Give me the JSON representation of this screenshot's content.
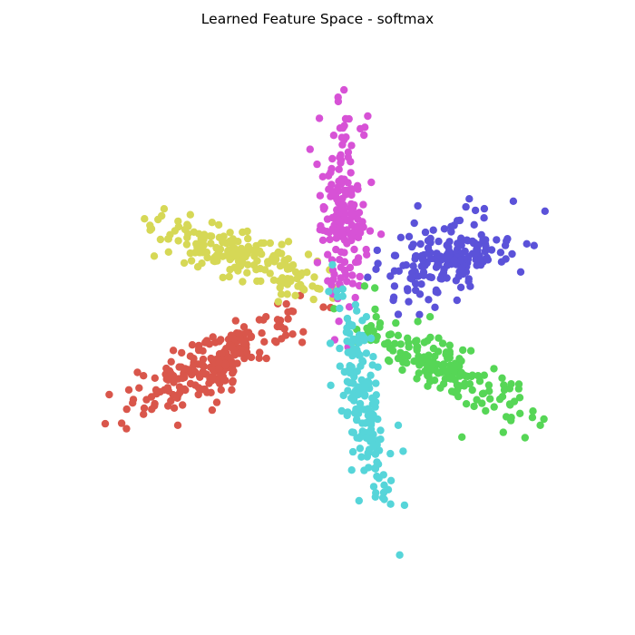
{
  "chart_data": {
    "type": "scatter",
    "title": "Learned Feature Space - softmax",
    "xlabel": "",
    "ylabel": "",
    "axes_visible": false,
    "grid": false,
    "legend": "none",
    "xlim": [
      -10,
      10
    ],
    "ylim": [
      -10,
      10
    ],
    "marker_radius": 4.2,
    "random_seed": 7,
    "series": [
      {
        "color": "#d9564b",
        "center": [
          -4.3,
          -1.6
        ],
        "spread": [
          1.8,
          0.52
        ],
        "angle_deg": 28,
        "n": 210,
        "points": [
          [
            -8.8,
            -3.0
          ],
          [
            -8.0,
            -2.8
          ],
          [
            -7.4,
            -2.2
          ],
          [
            -6.0,
            -4.3
          ],
          [
            -5.7,
            -1.9
          ],
          [
            -2.4,
            0.3
          ],
          [
            -1.5,
            0.5
          ],
          [
            -1.0,
            1.2
          ],
          [
            -3.5,
            -0.4
          ],
          [
            -4.6,
            -2.3
          ],
          [
            -3.8,
            -2.8
          ]
        ]
      },
      {
        "color": "#d6d856",
        "center": [
          -3.5,
          2.9
        ],
        "spread": [
          1.6,
          0.55
        ],
        "angle_deg": -18,
        "n": 180,
        "points": [
          [
            -6.4,
            3.6
          ],
          [
            -5.7,
            4.0
          ],
          [
            -4.6,
            4.3
          ],
          [
            -1.4,
            1.9
          ],
          [
            -1.2,
            1.2
          ],
          [
            -0.9,
            1.5
          ],
          [
            -0.5,
            1.6
          ],
          [
            -2.8,
            2.3
          ],
          [
            -3.9,
            2.0
          ]
        ]
      },
      {
        "color": "#d752d6",
        "center": [
          0.75,
          4.6
        ],
        "spread": [
          1.8,
          0.45
        ],
        "angle_deg": 90,
        "n": 170,
        "points": [
          [
            0.8,
            8.4
          ],
          [
            1.6,
            8.0
          ],
          [
            0.7,
            7.9
          ],
          [
            -0.6,
            7.4
          ],
          [
            1.9,
            6.0
          ],
          [
            0.6,
            1.7
          ],
          [
            0.9,
            1.8
          ],
          [
            -0.3,
            2.6
          ],
          [
            2.3,
            3.8
          ]
        ]
      },
      {
        "color": "#5b52d9",
        "center": [
          5.1,
          2.8
        ],
        "spread": [
          1.4,
          0.7
        ],
        "angle_deg": 15,
        "n": 180,
        "points": [
          [
            3.8,
            5.0
          ],
          [
            5.9,
            5.3
          ],
          [
            7.7,
            5.2
          ],
          [
            6.1,
            4.2
          ],
          [
            2.8,
            1.0
          ],
          [
            3.0,
            0.4
          ],
          [
            4.5,
            0.7
          ],
          [
            5.4,
            1.0
          ],
          [
            8.0,
            2.2
          ]
        ]
      },
      {
        "color": "#56d656",
        "center": [
          4.9,
          -1.9
        ],
        "spread": [
          1.9,
          0.55
        ],
        "angle_deg": -30,
        "n": 170,
        "points": [
          [
            2.1,
            0.3
          ],
          [
            3.8,
            0.1
          ],
          [
            4.3,
            0.3
          ],
          [
            6.7,
            -2.6
          ],
          [
            8.5,
            -3.7
          ],
          [
            8.8,
            -4.3
          ],
          [
            7.6,
            -4.1
          ],
          [
            5.6,
            -4.8
          ],
          [
            4.1,
            -2.0
          ]
        ]
      },
      {
        "color": "#56d5d9",
        "center": [
          1.6,
          -3.0
        ],
        "spread": [
          2.1,
          0.38
        ],
        "angle_deg": 100,
        "n": 170,
        "points": [
          [
            1.0,
            0.0
          ],
          [
            1.7,
            0.3
          ],
          [
            2.0,
            -6.9
          ],
          [
            1.4,
            -7.5
          ],
          [
            1.1,
            -6.2
          ],
          [
            2.4,
            -6.4
          ],
          [
            3.2,
            -5.4
          ],
          [
            3.0,
            -4.3
          ]
        ]
      }
    ]
  }
}
